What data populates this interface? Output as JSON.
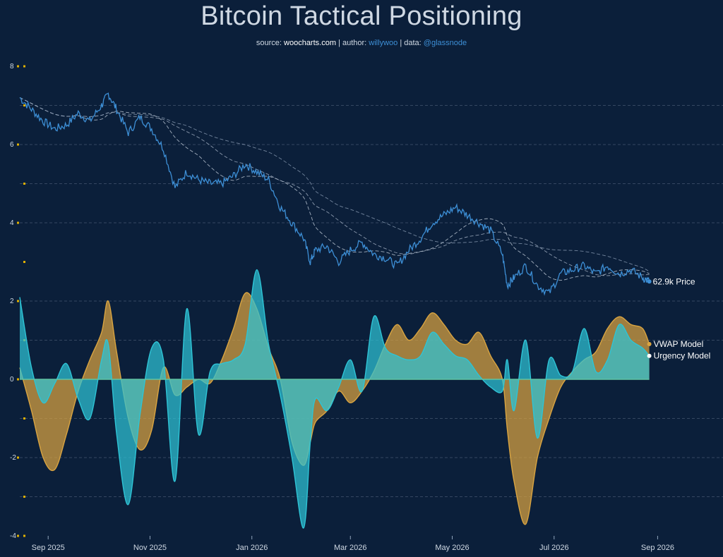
{
  "title": "Bitcoin Tactical Positioning",
  "subtitle": {
    "source_label": "source:",
    "source_value": "woocharts.com",
    "sep1": "|",
    "author_label": "author:",
    "author_value": "willywoo",
    "sep2": "|",
    "data_label": "data:",
    "data_value": "@glassnode"
  },
  "colors": {
    "background": "#0b1f3a",
    "price": "#3d8fd6",
    "vwap": "#d9a441",
    "urgency": "#2ec4d6",
    "overlap": "#5fc3a2",
    "grid": "#44566f",
    "tick_marker": "#e0b000"
  },
  "chart_data": {
    "type": "line",
    "x_ticks": [
      "Sep 2025",
      "Nov 2025",
      "Jan 2026",
      "Mar 2026",
      "May 2026",
      "Jul 2026",
      "Sep 2026"
    ],
    "x_tick_dates": [
      "2025-09-01",
      "2025-11-01",
      "2026-01-01",
      "2026-03-01",
      "2026-05-01",
      "2026-07-01",
      "2026-09-01"
    ],
    "xlim": [
      "2025-08-15",
      "2026-09-30"
    ],
    "y_ticks": [
      8,
      6,
      4,
      2,
      0,
      -2,
      -4
    ],
    "ylim": [
      -4,
      8
    ],
    "grid": "horizontal dashed",
    "series": [
      {
        "name": "Price",
        "end_label": "62.9k Price",
        "style": "line",
        "x": [
          "2025-08-15",
          "2025-08-22",
          "2025-08-29",
          "2025-09-05",
          "2025-09-12",
          "2025-09-19",
          "2025-09-26",
          "2025-10-03",
          "2025-10-07",
          "2025-10-12",
          "2025-10-19",
          "2025-10-26",
          "2025-11-02",
          "2025-11-09",
          "2025-11-16",
          "2025-11-23",
          "2025-11-30",
          "2025-12-07",
          "2025-12-14",
          "2025-12-21",
          "2025-12-28",
          "2026-01-04",
          "2026-01-11",
          "2026-01-18",
          "2026-01-25",
          "2026-02-01",
          "2026-02-05",
          "2026-02-08",
          "2026-02-15",
          "2026-02-22",
          "2026-03-01",
          "2026-03-08",
          "2026-03-15",
          "2026-03-22",
          "2026-03-29",
          "2026-04-05",
          "2026-04-12",
          "2026-04-19",
          "2026-04-26",
          "2026-05-03",
          "2026-05-10",
          "2026-05-17",
          "2026-05-24",
          "2026-05-31",
          "2026-06-03",
          "2026-06-07",
          "2026-06-14",
          "2026-06-21",
          "2026-06-28",
          "2026-07-05",
          "2026-07-12",
          "2026-07-19",
          "2026-07-26",
          "2026-08-02",
          "2026-08-09",
          "2026-08-16",
          "2026-08-23",
          "2026-08-27"
        ],
        "y": [
          7.2,
          6.9,
          6.6,
          6.4,
          6.5,
          6.8,
          6.6,
          7.0,
          7.3,
          6.9,
          6.3,
          6.7,
          6.4,
          5.9,
          4.9,
          5.3,
          5.1,
          5.0,
          5.0,
          5.2,
          5.5,
          5.3,
          5.1,
          4.4,
          4.0,
          3.6,
          3.0,
          3.3,
          3.4,
          3.0,
          3.3,
          3.5,
          3.2,
          3.1,
          2.9,
          3.3,
          3.6,
          4.0,
          4.2,
          4.4,
          4.2,
          4.0,
          3.8,
          3.2,
          2.4,
          2.6,
          2.9,
          2.4,
          2.2,
          2.7,
          2.8,
          2.9,
          2.7,
          2.9,
          2.7,
          2.8,
          2.6,
          2.5
        ]
      },
      {
        "name": "VWAP Model",
        "style": "area",
        "x": [
          "2025-08-15",
          "2025-08-22",
          "2025-08-29",
          "2025-09-05",
          "2025-09-12",
          "2025-09-19",
          "2025-09-26",
          "2025-10-03",
          "2025-10-07",
          "2025-10-12",
          "2025-10-19",
          "2025-10-26",
          "2025-11-02",
          "2025-11-09",
          "2025-11-16",
          "2025-11-23",
          "2025-11-30",
          "2025-12-07",
          "2025-12-14",
          "2025-12-21",
          "2025-12-28",
          "2026-01-04",
          "2026-01-11",
          "2026-01-18",
          "2026-01-25",
          "2026-02-01",
          "2026-02-05",
          "2026-02-08",
          "2026-02-15",
          "2026-02-22",
          "2026-03-01",
          "2026-03-08",
          "2026-03-15",
          "2026-03-22",
          "2026-03-29",
          "2026-04-05",
          "2026-04-12",
          "2026-04-19",
          "2026-04-26",
          "2026-05-03",
          "2026-05-10",
          "2026-05-17",
          "2026-05-24",
          "2026-05-31",
          "2026-06-03",
          "2026-06-07",
          "2026-06-14",
          "2026-06-21",
          "2026-06-28",
          "2026-07-05",
          "2026-07-12",
          "2026-07-19",
          "2026-07-26",
          "2026-08-02",
          "2026-08-09",
          "2026-08-16",
          "2026-08-23",
          "2026-08-27"
        ],
        "y": [
          0.3,
          -0.8,
          -2.0,
          -2.3,
          -1.4,
          -0.3,
          0.5,
          1.2,
          2.0,
          0.7,
          -1.0,
          -1.8,
          -1.3,
          0.3,
          -0.4,
          -0.2,
          0.0,
          -0.1,
          0.5,
          1.3,
          2.2,
          1.8,
          0.8,
          0.0,
          -1.6,
          -2.2,
          -1.6,
          -1.1,
          -0.8,
          -0.3,
          -0.6,
          -0.3,
          0.2,
          0.9,
          1.4,
          1.0,
          1.3,
          1.7,
          1.4,
          1.0,
          0.9,
          1.2,
          0.6,
          0.0,
          -1.3,
          -2.6,
          -3.7,
          -2.0,
          -1.0,
          -0.2,
          0.2,
          0.5,
          0.7,
          1.3,
          1.6,
          1.4,
          1.3,
          0.9
        ]
      },
      {
        "name": "Urgency Model",
        "style": "area",
        "x": [
          "2025-08-15",
          "2025-08-22",
          "2025-08-29",
          "2025-09-05",
          "2025-09-12",
          "2025-09-19",
          "2025-09-26",
          "2025-10-03",
          "2025-10-07",
          "2025-10-12",
          "2025-10-19",
          "2025-10-26",
          "2025-11-02",
          "2025-11-09",
          "2025-11-16",
          "2025-11-23",
          "2025-11-30",
          "2025-12-07",
          "2025-12-14",
          "2025-12-21",
          "2025-12-28",
          "2026-01-04",
          "2026-01-11",
          "2026-01-18",
          "2026-01-25",
          "2026-02-01",
          "2026-02-05",
          "2026-02-08",
          "2026-02-15",
          "2026-02-22",
          "2026-03-01",
          "2026-03-08",
          "2026-03-15",
          "2026-03-22",
          "2026-03-29",
          "2026-04-05",
          "2026-04-12",
          "2026-04-19",
          "2026-04-26",
          "2026-05-03",
          "2026-05-10",
          "2026-05-17",
          "2026-05-24",
          "2026-05-31",
          "2026-06-03",
          "2026-06-07",
          "2026-06-14",
          "2026-06-21",
          "2026-06-28",
          "2026-07-05",
          "2026-07-12",
          "2026-07-19",
          "2026-07-26",
          "2026-08-02",
          "2026-08-09",
          "2026-08-16",
          "2026-08-23",
          "2026-08-27"
        ],
        "y": [
          2.1,
          0.3,
          -0.6,
          -0.1,
          0.4,
          -0.5,
          -1.0,
          0.5,
          0.9,
          -1.4,
          -3.2,
          -0.9,
          0.8,
          0.5,
          -2.6,
          1.8,
          -1.4,
          0.2,
          0.4,
          0.5,
          0.9,
          2.8,
          0.9,
          -0.4,
          -2.0,
          -3.8,
          -1.6,
          -0.5,
          -0.8,
          -0.2,
          0.5,
          -0.3,
          1.6,
          0.8,
          0.6,
          0.5,
          0.6,
          1.2,
          0.9,
          0.6,
          0.5,
          0.1,
          -0.2,
          -0.3,
          0.5,
          -0.8,
          1.0,
          -1.5,
          0.5,
          0.1,
          0.2,
          1.3,
          0.2,
          0.5,
          1.4,
          1.0,
          0.8,
          0.6
        ]
      }
    ]
  }
}
